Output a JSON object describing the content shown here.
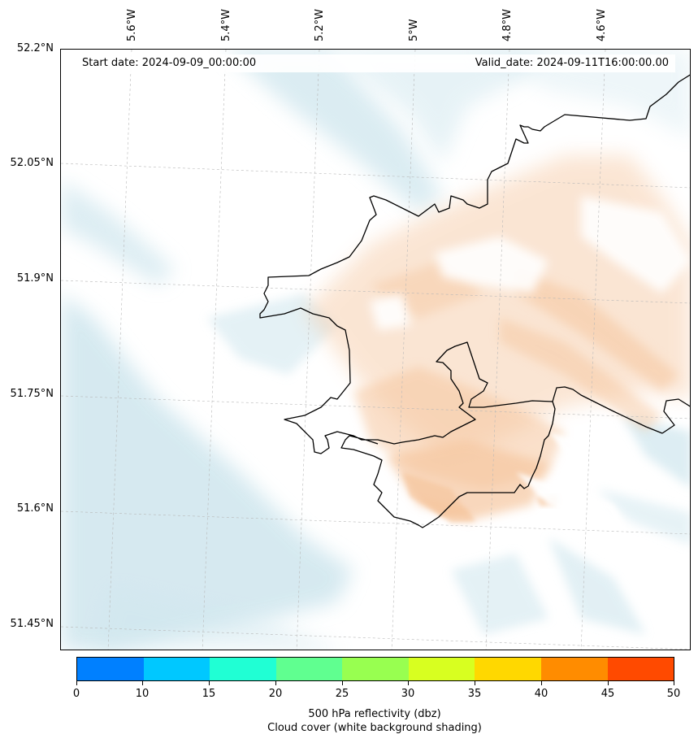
{
  "header": {
    "start_label": "Start date: 2024-09-09_00:00:00",
    "valid_label": "Valid_date: 2024-09-11T16:00:00.00"
  },
  "longitude_labels": [
    "5.6°W",
    "5.4°W",
    "5.2°W",
    "5°W",
    "4.8°W",
    "4.6°W"
  ],
  "latitude_labels": [
    "52.2°N",
    "52.05°N",
    "51.9°N",
    "51.75°N",
    "51.6°N",
    "51.45°N"
  ],
  "colorbar": {
    "bounds": [
      "0",
      "10",
      "15",
      "20",
      "25",
      "30",
      "35",
      "40",
      "45",
      "50"
    ],
    "colors": [
      "#0080ff",
      "#00c8ff",
      "#20ffd4",
      "#60ff90",
      "#98ff50",
      "#d8ff20",
      "#ffd800",
      "#ff8c00",
      "#ff4a00"
    ],
    "title": "500 hPa reflectivity (dbz)",
    "subtitle": "Cloud cover (white background shading)"
  },
  "shading_colors": {
    "cloud_blue": "#cfe6ee",
    "reflectivity_orange": "#f6c7a0",
    "coastline": "#000000"
  }
}
